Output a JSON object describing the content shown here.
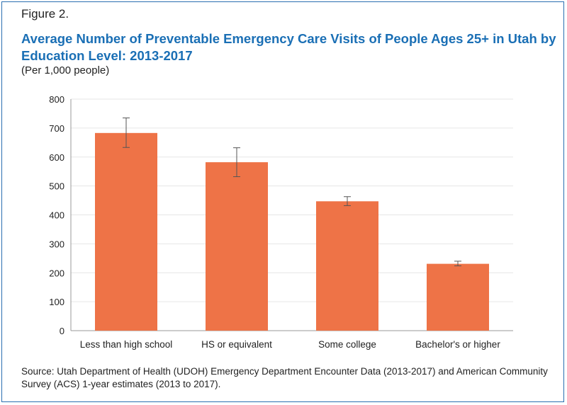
{
  "figure_label": "Figure 2.",
  "title": "Average Number of Preventable Emergency Care Visits of People Ages 25+ in Utah by Education Level: 2013-2017",
  "subtitle": "(Per 1,000 people)",
  "source": "Source: Utah Department of Health (UDOH) Emergency Department Encounter Data (2013-2017) and American Community Survey (ACS) 1-year estimates (2013 to 2017).",
  "colors": {
    "bar": "#ee7347",
    "title": "#1a6fb5",
    "grid": "#e6e6e6",
    "border": "#2a6fb0"
  },
  "chart_data": {
    "type": "bar",
    "title": "Average Number of Preventable Emergency Care Visits of People Ages 25+ in Utah by Education Level: 2013-2017",
    "xlabel": "",
    "ylabel": "",
    "categories": [
      "Less than high school",
      "HS or equivalent",
      "Some college",
      "Bachelor's or higher"
    ],
    "values": [
      683,
      582,
      447,
      231
    ],
    "error_low": [
      633,
      532,
      432,
      224
    ],
    "error_high": [
      735,
      632,
      463,
      240
    ],
    "ylim": [
      0,
      800
    ],
    "yticks": [
      0,
      100,
      200,
      300,
      400,
      500,
      600,
      700,
      800
    ],
    "grid": true,
    "legend": "none"
  }
}
